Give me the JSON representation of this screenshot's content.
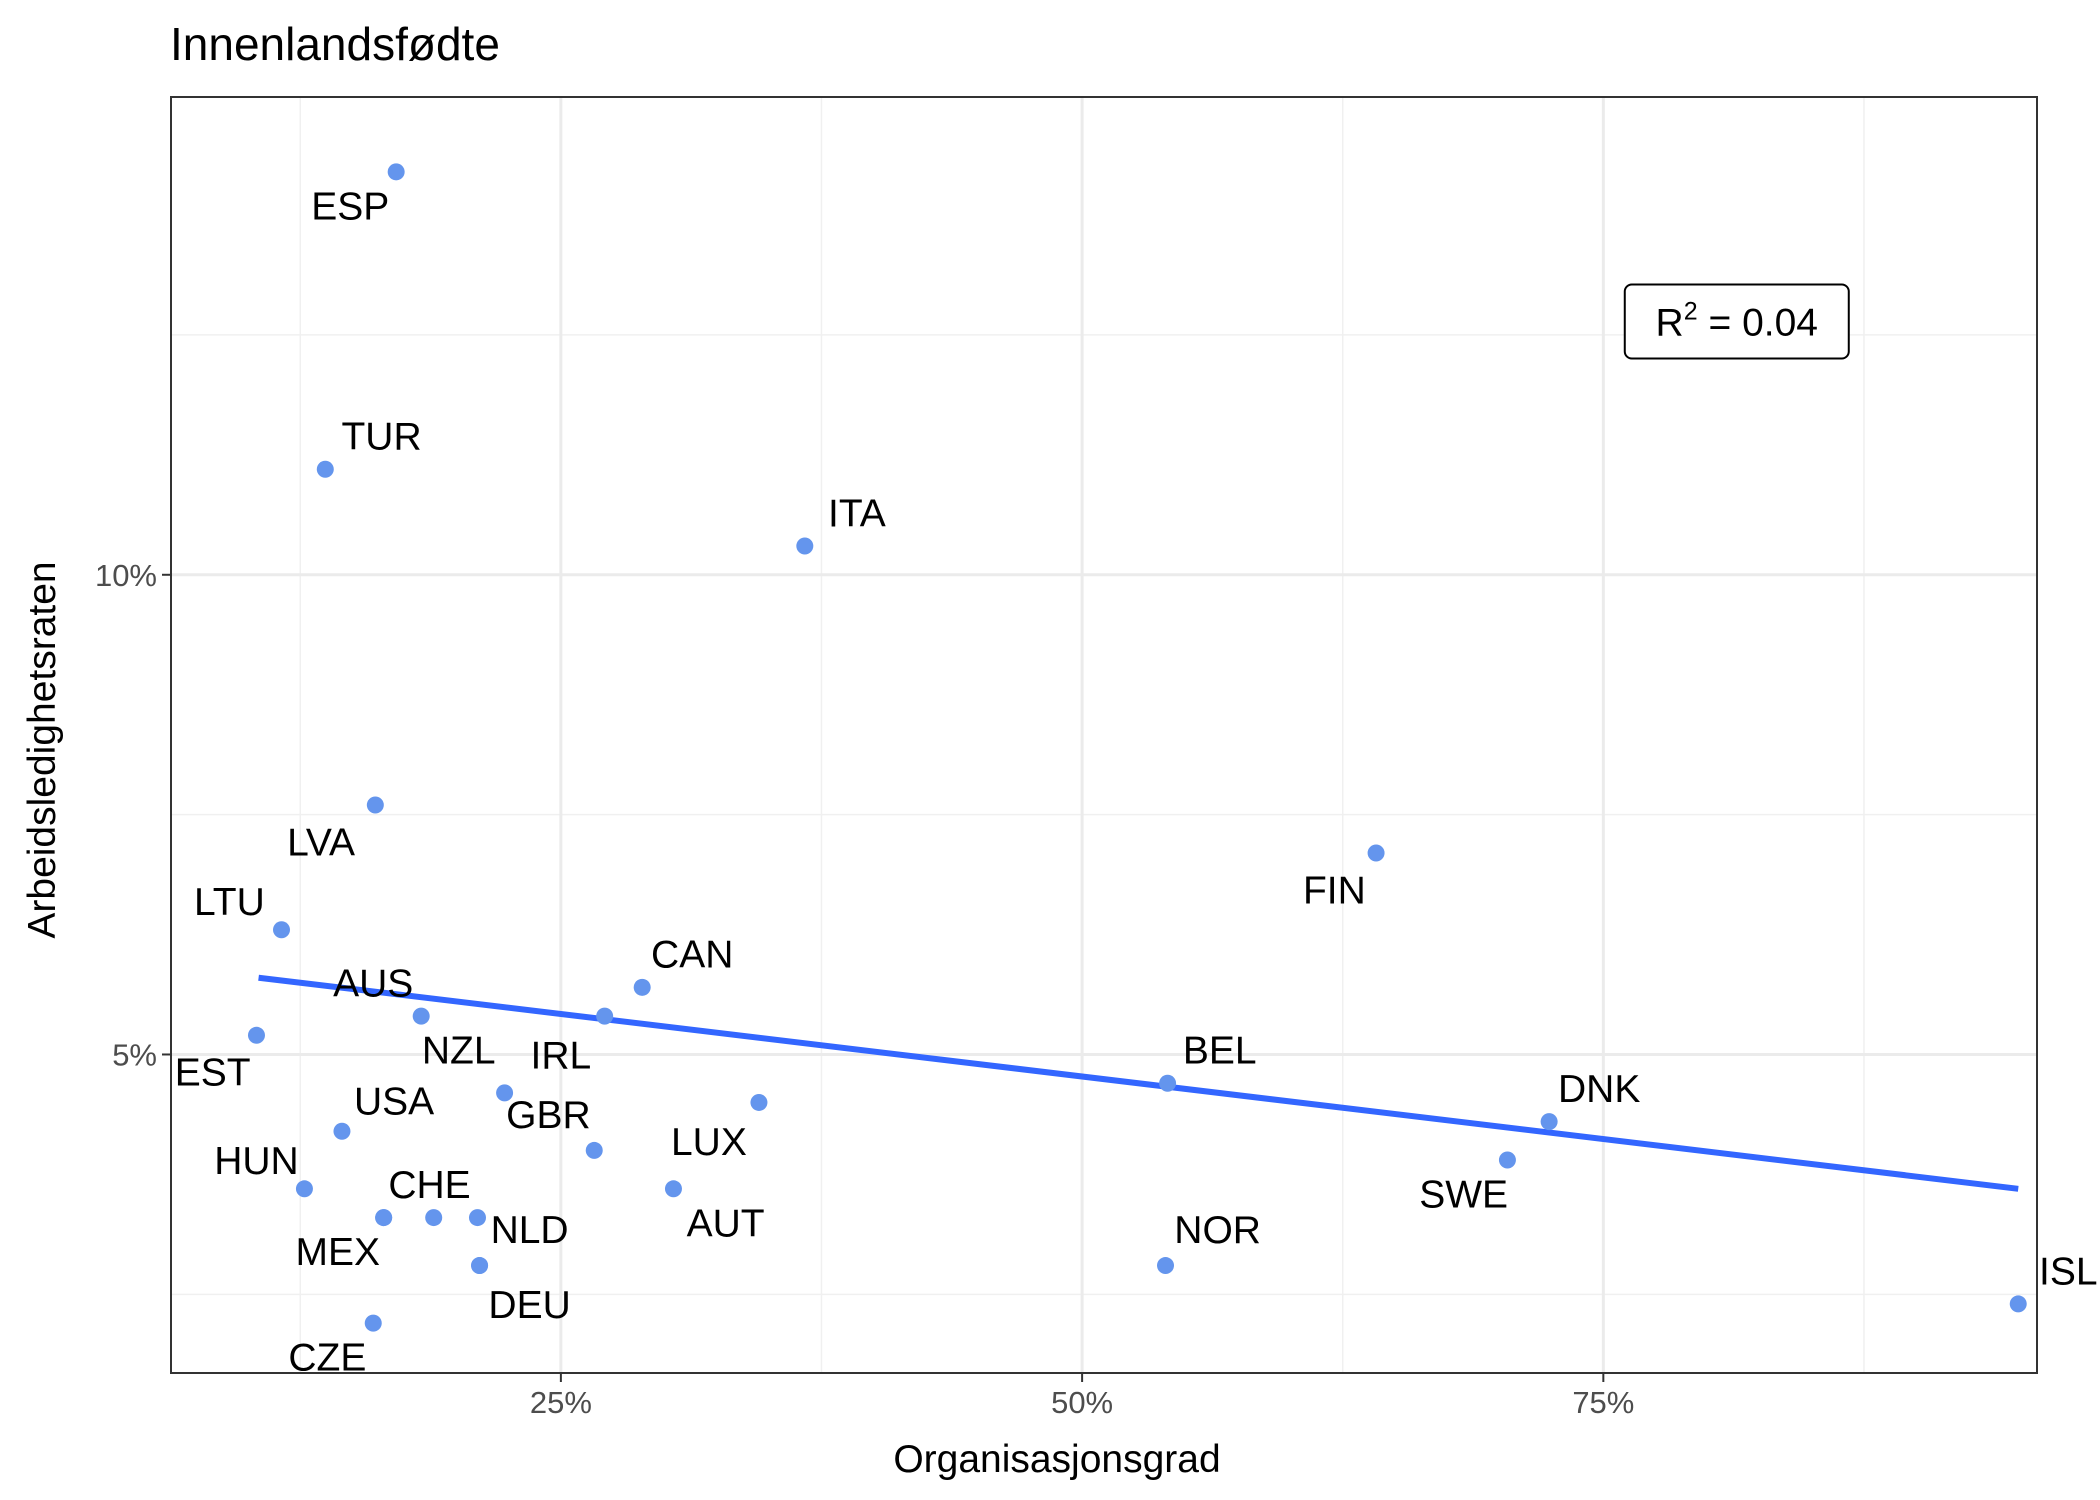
{
  "chart_data": {
    "type": "scatter",
    "title": "Innenlandsfødte",
    "xlabel": "Organisasjonsgrad",
    "ylabel": "Arbeidsledighetsraten",
    "xlim": [
      0.063,
      0.958
    ],
    "ylim": [
      0.0168,
      0.1498
    ],
    "x_ticks": [
      {
        "value": 0.25,
        "label": "25%"
      },
      {
        "value": 0.5,
        "label": "50%"
      },
      {
        "value": 0.75,
        "label": "75%"
      }
    ],
    "y_ticks": [
      {
        "value": 0.05,
        "label": "5%"
      },
      {
        "value": 0.1,
        "label": "10%"
      }
    ],
    "x_minor_grid": [
      0.125,
      0.375,
      0.625,
      0.875
    ],
    "y_minor_grid": [
      0.025,
      0.075,
      0.125
    ],
    "grid": true,
    "point_color": "#6495ED",
    "line_color": "#3366FF",
    "points": [
      {
        "label": "ESP",
        "x": 0.171,
        "y": 0.142,
        "lx": 0.149,
        "ly": 0.1385
      },
      {
        "label": "TUR",
        "x": 0.137,
        "y": 0.111,
        "lx": 0.164,
        "ly": 0.1145
      },
      {
        "label": "ITA",
        "x": 0.367,
        "y": 0.103,
        "lx": 0.392,
        "ly": 0.1065
      },
      {
        "label": "LVA",
        "x": 0.161,
        "y": 0.076,
        "lx": 0.135,
        "ly": 0.0722
      },
      {
        "label": "FIN",
        "x": 0.641,
        "y": 0.071,
        "lx": 0.621,
        "ly": 0.0672
      },
      {
        "label": "LTU",
        "x": 0.116,
        "y": 0.063,
        "lx": 0.091,
        "ly": 0.066
      },
      {
        "label": "CAN",
        "x": 0.289,
        "y": 0.057,
        "lx": 0.313,
        "ly": 0.0605
      },
      {
        "label": "AUS",
        "x": 0.183,
        "y": 0.054,
        "lx": 0.16,
        "ly": 0.0575
      },
      {
        "label": "IRL",
        "x": 0.271,
        "y": 0.054,
        "lx": 0.25,
        "ly": 0.05
      },
      {
        "label": "EST",
        "x": 0.104,
        "y": 0.052,
        "lx": 0.083,
        "ly": 0.0482
      },
      {
        "label": "NZL",
        "x": 0.223,
        "y": 0.046,
        "lx": 0.201,
        "ly": 0.0505
      },
      {
        "label": "BEL",
        "x": 0.541,
        "y": 0.047,
        "lx": 0.566,
        "ly": 0.0505
      },
      {
        "label": "LUX",
        "x": 0.345,
        "y": 0.045,
        "lx": 0.321,
        "ly": 0.041
      },
      {
        "label": "USA",
        "x": 0.145,
        "y": 0.042,
        "lx": 0.17,
        "ly": 0.0452
      },
      {
        "label": "GBR",
        "x": 0.266,
        "y": 0.04,
        "lx": 0.244,
        "ly": 0.0438
      },
      {
        "label": "DNK",
        "x": 0.724,
        "y": 0.043,
        "lx": 0.748,
        "ly": 0.0465
      },
      {
        "label": "SWE",
        "x": 0.704,
        "y": 0.039,
        "lx": 0.683,
        "ly": 0.0355
      },
      {
        "label": "HUN",
        "x": 0.127,
        "y": 0.036,
        "lx": 0.104,
        "ly": 0.039
      },
      {
        "label": "AUT",
        "x": 0.304,
        "y": 0.036,
        "lx": 0.329,
        "ly": 0.0325
      },
      {
        "label": "CHE",
        "x": 0.165,
        "y": 0.033,
        "lx": 0.187,
        "ly": 0.0365
      },
      {
        "label": "CHE_pt2",
        "x": 0.189,
        "y": 0.033
      },
      {
        "label": "CHE_pt3",
        "x": 0.21,
        "y": 0.033
      },
      {
        "label": "NLD",
        "x": 0.211,
        "y": 0.028,
        "lx": 0.235,
        "ly": 0.0318
      },
      {
        "label": "MEX",
        "x": 0.165,
        "y": 0.033,
        "lx": 0.143,
        "ly": 0.0295
      },
      {
        "label": "DEU",
        "x": 0.211,
        "y": 0.028,
        "lx": 0.235,
        "ly": 0.024
      },
      {
        "label": "NOR",
        "x": 0.54,
        "y": 0.028,
        "lx": 0.565,
        "ly": 0.0318
      },
      {
        "label": "CZE",
        "x": 0.16,
        "y": 0.022,
        "lx": 0.138,
        "ly": 0.0185
      },
      {
        "label": "ISL",
        "x": 0.949,
        "y": 0.024,
        "lx": 0.973,
        "ly": 0.0275
      }
    ],
    "fit_line": [
      {
        "x": 0.105,
        "y": 0.058
      },
      {
        "x": 0.949,
        "y": 0.036
      }
    ],
    "annotation": {
      "r_symbol": "R",
      "exponent": "2",
      "value_text": " = 0.04",
      "x": 0.814,
      "y": 0.1264
    }
  }
}
